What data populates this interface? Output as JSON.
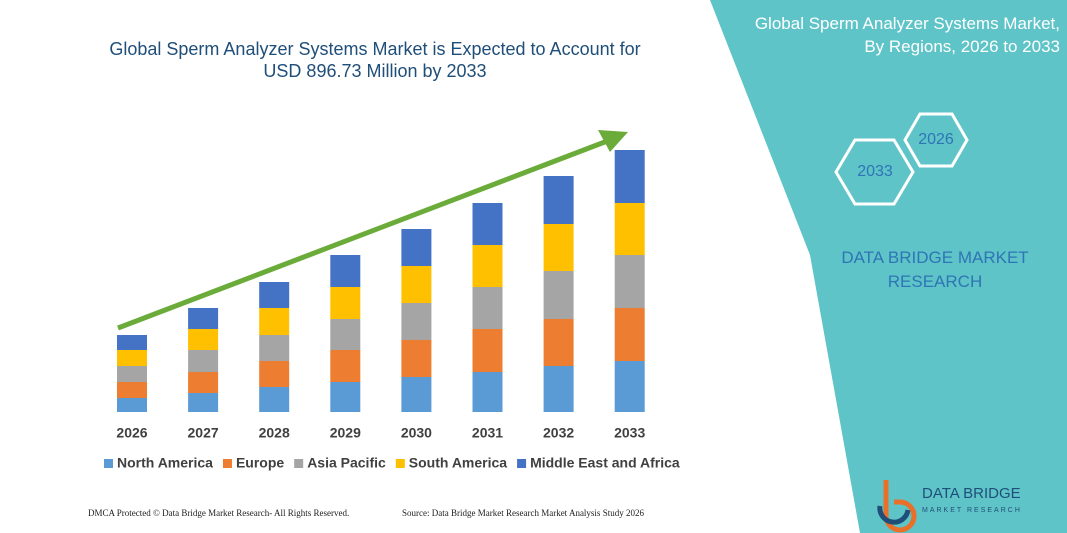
{
  "chart_data": {
    "type": "stacked_bar",
    "title": "Global Sperm Analyzer Systems Market is Expected to Account for USD 896.73 Million by 2033",
    "categories": [
      "2026",
      "2027",
      "2028",
      "2029",
      "2030",
      "2031",
      "2032",
      "2033"
    ],
    "series": [
      {
        "name": "North America",
        "color": "#5b9bd5",
        "values": [
          14,
          19,
          25,
          30,
          35,
          40,
          46,
          51
        ]
      },
      {
        "name": "Europe",
        "color": "#ed7d31",
        "values": [
          16,
          21,
          26,
          32,
          37,
          43,
          47,
          53
        ]
      },
      {
        "name": "Asia Pacific",
        "color": "#a5a5a5",
        "values": [
          16,
          22,
          26,
          31,
          37,
          42,
          48,
          53
        ]
      },
      {
        "name": "South America",
        "color": "#ffc000",
        "values": [
          16,
          21,
          27,
          32,
          37,
          42,
          47,
          52
        ]
      },
      {
        "name": "Middle East and Africa",
        "color": "#4472c4",
        "values": [
          15,
          21,
          26,
          32,
          37,
          42,
          48,
          53
        ]
      }
    ],
    "ylim": [
      0,
      270
    ],
    "legend": "bottom"
  },
  "panel": {
    "title": "Global Sperm Analyzer Systems Market, By Regions, 2026 to 2033",
    "hex_labels": [
      "2026",
      "2033"
    ],
    "brand": "DATA BRIDGE MARKET RESEARCH"
  },
  "logo": {
    "name": "DATA BRIDGE",
    "tagline": "MARKET RESEARCH"
  },
  "footer": {
    "left": "DMCA Protected © Data Bridge Market Research- All Rights Reserved.",
    "right": "Source: Data Bridge Market Research Market Analysis Study 2026"
  }
}
